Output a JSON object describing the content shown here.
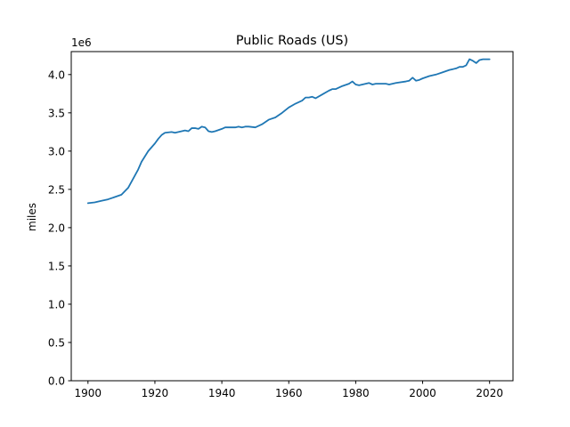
{
  "chart_data": {
    "type": "line",
    "title": "Public Roads (US)",
    "xlabel": "",
    "ylabel": "miles",
    "y_multiplier_label": "1e6",
    "xlim": [
      1895,
      2027
    ],
    "ylim": [
      0,
      4300000
    ],
    "x_ticks": [
      1900,
      1920,
      1940,
      1960,
      1980,
      2000,
      2020
    ],
    "y_ticks": [
      0,
      500000,
      1000000,
      1500000,
      2000000,
      2500000,
      3000000,
      3500000,
      4000000
    ],
    "y_tick_labels": [
      "0.0",
      "0.5",
      "1.0",
      "1.5",
      "2.0",
      "2.5",
      "3.0",
      "3.5",
      "4.0"
    ],
    "grid": false,
    "series": [
      {
        "color": "#1f77b4",
        "x": [
          1900,
          1902,
          1904,
          1906,
          1908,
          1910,
          1912,
          1914,
          1915,
          1916,
          1918,
          1920,
          1921,
          1922,
          1923,
          1925,
          1926,
          1928,
          1929,
          1930,
          1931,
          1932,
          1933,
          1934,
          1935,
          1936,
          1937,
          1938,
          1940,
          1941,
          1942,
          1944,
          1945,
          1946,
          1947,
          1948,
          1950,
          1952,
          1954,
          1956,
          1958,
          1960,
          1962,
          1964,
          1965,
          1966,
          1967,
          1968,
          1970,
          1972,
          1973,
          1974,
          1976,
          1978,
          1979,
          1980,
          1981,
          1982,
          1983,
          1984,
          1985,
          1986,
          1987,
          1988,
          1989,
          1990,
          1992,
          1995,
          1996,
          1997,
          1998,
          1999,
          2000,
          2002,
          2004,
          2006,
          2008,
          2010,
          2011,
          2012,
          2013,
          2014,
          2015,
          2016,
          2017,
          2018,
          2019,
          2020
        ],
        "values": [
          2320000,
          2330000,
          2350000,
          2370000,
          2400000,
          2430000,
          2520000,
          2680000,
          2760000,
          2860000,
          3000000,
          3100000,
          3160000,
          3210000,
          3240000,
          3250000,
          3240000,
          3260000,
          3270000,
          3260000,
          3300000,
          3300000,
          3290000,
          3320000,
          3310000,
          3260000,
          3250000,
          3260000,
          3290000,
          3310000,
          3310000,
          3310000,
          3320000,
          3310000,
          3320000,
          3320000,
          3310000,
          3350000,
          3410000,
          3440000,
          3500000,
          3570000,
          3620000,
          3660000,
          3700000,
          3700000,
          3710000,
          3690000,
          3740000,
          3790000,
          3810000,
          3810000,
          3850000,
          3880000,
          3910000,
          3870000,
          3860000,
          3870000,
          3880000,
          3890000,
          3870000,
          3880000,
          3880000,
          3880000,
          3880000,
          3870000,
          3890000,
          3910000,
          3920000,
          3960000,
          3920000,
          3930000,
          3950000,
          3980000,
          4000000,
          4030000,
          4060000,
          4080000,
          4100000,
          4100000,
          4120000,
          4200000,
          4180000,
          4150000,
          4190000,
          4200000,
          4200000,
          4200000
        ]
      }
    ]
  }
}
